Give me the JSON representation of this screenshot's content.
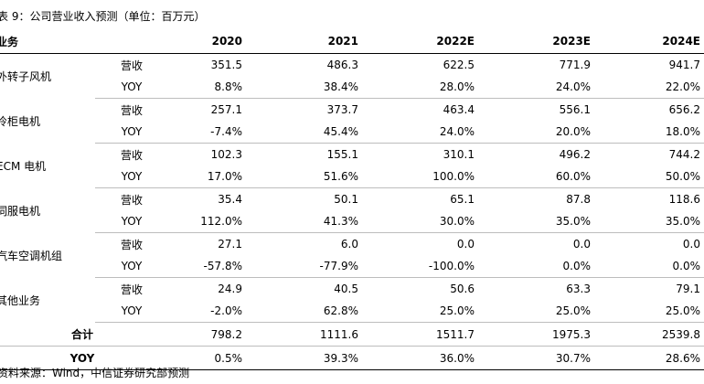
{
  "title": "表 9：公司营业收入预测（单位：百万元）",
  "columns": {
    "segment": "业务",
    "years": [
      "2020",
      "2021",
      "2022E",
      "2023E",
      "2024E"
    ]
  },
  "segments": [
    {
      "name": "外转子风机",
      "rows": [
        {
          "metric": "营收",
          "values": [
            "351.5",
            "486.3",
            "622.5",
            "771.9",
            "941.7"
          ]
        },
        {
          "metric": "YOY",
          "values": [
            "8.8%",
            "38.4%",
            "28.0%",
            "24.0%",
            "22.0%"
          ]
        }
      ]
    },
    {
      "name": "冷柜电机",
      "rows": [
        {
          "metric": "营收",
          "values": [
            "257.1",
            "373.7",
            "463.4",
            "556.1",
            "656.2"
          ]
        },
        {
          "metric": "YOY",
          "values": [
            "-7.4%",
            "45.4%",
            "24.0%",
            "20.0%",
            "18.0%"
          ]
        }
      ]
    },
    {
      "name": "ECM 电机",
      "rows": [
        {
          "metric": "营收",
          "values": [
            "102.3",
            "155.1",
            "310.1",
            "496.2",
            "744.2"
          ]
        },
        {
          "metric": "YOY",
          "values": [
            "17.0%",
            "51.6%",
            "100.0%",
            "60.0%",
            "50.0%"
          ]
        }
      ]
    },
    {
      "name": "伺服电机",
      "rows": [
        {
          "metric": "营收",
          "values": [
            "35.4",
            "50.1",
            "65.1",
            "87.8",
            "118.6"
          ]
        },
        {
          "metric": "YOY",
          "values": [
            "112.0%",
            "41.3%",
            "30.0%",
            "35.0%",
            "35.0%"
          ]
        }
      ]
    },
    {
      "name": "汽车空调机组",
      "rows": [
        {
          "metric": "营收",
          "values": [
            "27.1",
            "6.0",
            "0.0",
            "0.0",
            "0.0"
          ]
        },
        {
          "metric": "YOY",
          "values": [
            "-57.8%",
            "-77.9%",
            "-100.0%",
            "0.0%",
            "0.0%"
          ]
        }
      ]
    },
    {
      "name": "其他业务",
      "rows": [
        {
          "metric": "营收",
          "values": [
            "24.9",
            "40.5",
            "50.6",
            "63.3",
            "79.1"
          ]
        },
        {
          "metric": "YOY",
          "values": [
            "-2.0%",
            "62.8%",
            "25.0%",
            "25.0%",
            "25.0%"
          ]
        }
      ]
    }
  ],
  "summary": [
    {
      "label": "合计",
      "values": [
        "798.2",
        "1111.6",
        "1511.7",
        "1975.3",
        "2539.8"
      ]
    },
    {
      "label": "YOY",
      "values": [
        "0.5%",
        "39.3%",
        "36.0%",
        "30.7%",
        "28.6%"
      ]
    }
  ],
  "source": "资料来源：Wind，中信证券研究部预测"
}
